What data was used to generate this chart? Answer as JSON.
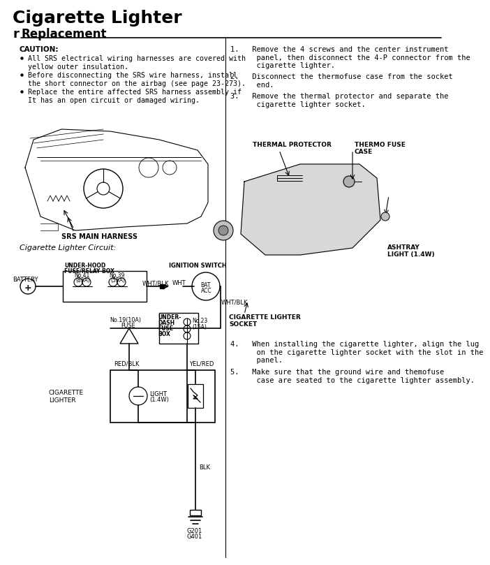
{
  "title": "Cigarette Lighter",
  "subtitle": "Replacement",
  "bg_color": "#ffffff",
  "caution_title": "CAUTION:",
  "caution_bullets": [
    "All SRS electrical wiring harnesses are covered with\nyellow outer insulation.",
    "Before disconnecting the SRS wire harness, install\nthe short connector on the airbag (see page 23-273).",
    "Replace the entire affected SRS harness assembly if\nIt has an open circuit or damaged wiring."
  ],
  "step1": "1.   Remove the 4 screws and the center instrument\n      panel, then disconnect the 4-P connector from the\n      cigarette lighter.",
  "step2": "2.   Disconnect the thermofuse case from the socket\n      end.",
  "step3": "3.   Remove the thermal protector and separate the\n      cigarette lighter socket.",
  "step4": "4.   When installing the cigarette lighter, align the lug\n      on the cigarette lighter socket with the slot in the\n      panel.",
  "step5": "5.   Make sure that the ground wire and themofuse\n      case are seated to the cigarette lighter assembly.",
  "circuit_label": "Cigarette Lighter Circuit:",
  "divx": 313
}
